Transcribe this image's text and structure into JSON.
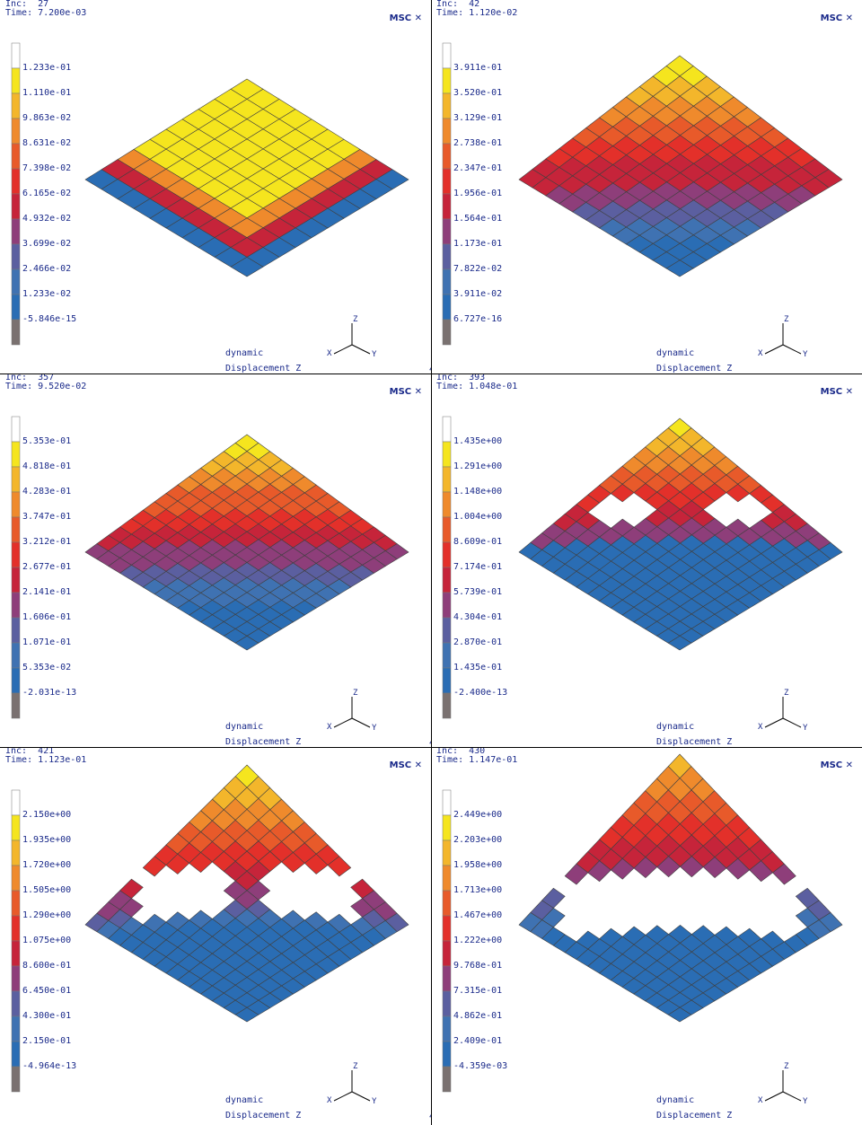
{
  "footer": {
    "case_label": "dynamic",
    "variable_label": "Displacement Z",
    "corner_mark": "4"
  },
  "logo_text": "MSC",
  "axis_labels": {
    "z": "Z",
    "x": "X",
    "y": "Y"
  },
  "colors": {
    "legend": [
      "#ffffff",
      "#f5e51e",
      "#f3b62b",
      "#ef8a2c",
      "#e85a2a",
      "#e3302a",
      "#c6243a",
      "#8e3e7a",
      "#5b5fa0",
      "#3f72b2",
      "#2a6db4",
      "#7a7170"
    ],
    "mesh": "#404040",
    "text": "#1a2a8a"
  },
  "panels": [
    {
      "inc_label": "Inc:",
      "inc": "27",
      "time_label": "Time:",
      "time": "7.200e-03",
      "legend": [
        "1.233e-01",
        "1.110e-01",
        "9.863e-02",
        "8.631e-02",
        "7.398e-02",
        "6.165e-02",
        "4.932e-02",
        "3.699e-02",
        "2.466e-02",
        "1.233e-02",
        "-5.846e-15"
      ]
    },
    {
      "inc_label": "Inc:",
      "inc": "42",
      "time_label": "Time:",
      "time": "1.120e-02",
      "legend": [
        "3.911e-01",
        "3.520e-01",
        "3.129e-01",
        "2.738e-01",
        "2.347e-01",
        "1.956e-01",
        "1.564e-01",
        "1.173e-01",
        "7.822e-02",
        "3.911e-02",
        "6.727e-16"
      ]
    },
    {
      "inc_label": "Inc:",
      "inc": "357",
      "time_label": "Time:",
      "time": "9.520e-02",
      "legend": [
        "5.353e-01",
        "4.818e-01",
        "4.283e-01",
        "3.747e-01",
        "3.212e-01",
        "2.677e-01",
        "2.141e-01",
        "1.606e-01",
        "1.071e-01",
        "5.353e-02",
        "-2.031e-13"
      ]
    },
    {
      "inc_label": "Inc:",
      "inc": "393",
      "time_label": "Time:",
      "time": "1.048e-01",
      "legend": [
        "1.435e+00",
        "1.291e+00",
        "1.148e+00",
        "1.004e+00",
        "8.609e-01",
        "7.174e-01",
        "5.739e-01",
        "4.304e-01",
        "2.870e-01",
        "1.435e-01",
        "-2.400e-13"
      ]
    },
    {
      "inc_label": "Inc:",
      "inc": "421",
      "time_label": "Time:",
      "time": "1.123e-01",
      "legend": [
        "2.150e+00",
        "1.935e+00",
        "1.720e+00",
        "1.505e+00",
        "1.290e+00",
        "1.075e+00",
        "8.600e-01",
        "6.450e-01",
        "4.300e-01",
        "2.150e-01",
        "-4.964e-13"
      ]
    },
    {
      "inc_label": "Inc:",
      "inc": "430",
      "time_label": "Time:",
      "time": "1.147e-01",
      "legend": [
        "2.449e+00",
        "2.203e+00",
        "1.958e+00",
        "1.713e+00",
        "1.467e+00",
        "1.222e+00",
        "9.768e-01",
        "7.315e-01",
        "4.862e-01",
        "2.409e-01",
        "-4.359e-03"
      ]
    }
  ]
}
